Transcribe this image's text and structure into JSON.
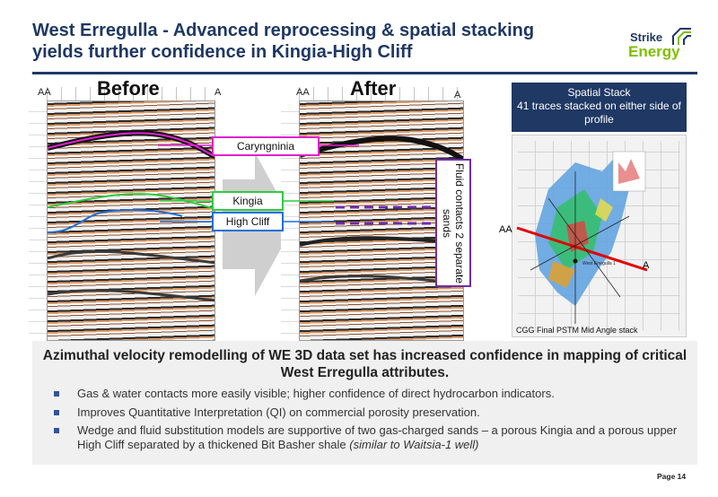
{
  "header": {
    "title_line1": "West Erregulla - Advanced reprocessing & spatial stacking",
    "title_line2": "yields further confidence in Kingia-High Cliff"
  },
  "logo": {
    "word1": "Strike",
    "word2": "Energy"
  },
  "before_panel": {
    "title": "Before",
    "left_label": "AA",
    "right_label": "A"
  },
  "after_panel": {
    "title": "After",
    "left_label": "AA",
    "right_label": "A"
  },
  "callouts": {
    "carynginia": "Caryngninia",
    "kingia": "Kingia",
    "high_cliff": "High Cliff",
    "fluid_contacts": "Fluid contacts 2 separate sands"
  },
  "spatial_stack": {
    "title": "Spatial Stack",
    "subtitle": "41 traces stacked on either side of profile",
    "left_label": "AA",
    "right_label": "A",
    "well_label": "West Erregulla 1",
    "caption": "CGG Final PSTM Mid Angle stack"
  },
  "summary": {
    "headline": "Azimuthal velocity remodelling of WE 3D data set has increased confidence in mapping of critical West Erregulla attributes.",
    "bullets": [
      "Gas & water contacts more easily visible; higher confidence of direct hydrocarbon indicators.",
      "Improves Quantitative Interpretation (QI) on commercial porosity preservation.",
      "Wedge and fluid substitution models are supportive of two gas-charged sands – a porous Kingia and a porous upper High Cliff separated by a thickened Bit Basher shale"
    ],
    "bullet3_italic": "(similar to Waitsia-1 well)"
  },
  "footer": {
    "page": "Page 14"
  },
  "colors": {
    "navy": "#1f3864",
    "green": "#7fbf00",
    "carynginia": "#e020d0",
    "kingia": "#2ecc40",
    "high_cliff": "#1e6fd9",
    "fluid": "#6f2da8"
  }
}
